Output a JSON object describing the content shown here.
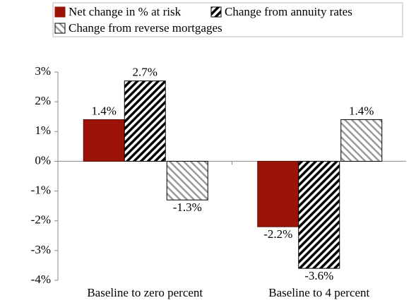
{
  "chart_data": {
    "type": "bar",
    "categories": [
      "Baseline to zero percent",
      "Baseline to 4 percent"
    ],
    "series": [
      {
        "name": "Net change in % at risk",
        "color": "#9b1306",
        "pattern": "solid",
        "values": [
          1.4,
          -2.2
        ],
        "value_labels": [
          "1.4%",
          "-2.2%"
        ]
      },
      {
        "name": "Change from annuity rates",
        "color": "#000000",
        "pattern": "forward-hatch",
        "values": [
          2.7,
          -3.6
        ],
        "value_labels": [
          "2.7%",
          "-3.6%"
        ]
      },
      {
        "name": "Change from reverse mortgages",
        "color": "#9a9a9a",
        "pattern": "back-hatch",
        "values": [
          -1.3,
          1.4
        ],
        "value_labels": [
          "-1.3%",
          "1.4%"
        ]
      }
    ],
    "ylim": [
      -4,
      3
    ],
    "yticks": [
      {
        "value": -4,
        "label": "-4%"
      },
      {
        "value": -3,
        "label": "-3%"
      },
      {
        "value": -2,
        "label": "-2%"
      },
      {
        "value": -1,
        "label": "-1%"
      },
      {
        "value": 0,
        "label": "0%"
      },
      {
        "value": 1,
        "label": "1%"
      },
      {
        "value": 2,
        "label": "2%"
      },
      {
        "value": 3,
        "label": "3%"
      }
    ],
    "legend": "top"
  }
}
